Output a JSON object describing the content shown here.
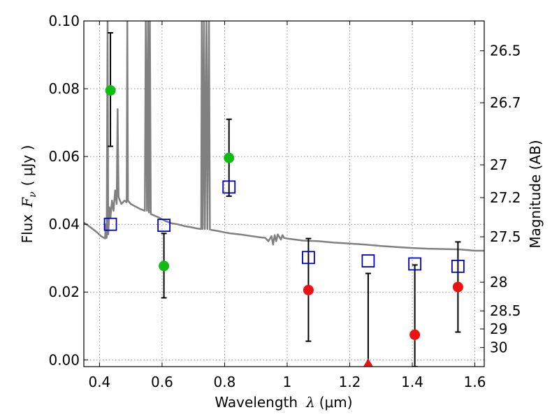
{
  "chart_data": {
    "type": "scatter",
    "xlabel": "Wavelength",
    "xlabel_symbol": "λ",
    "xlabel_unit": "(μm)",
    "ylabel": "Flux",
    "ylabel_symbol": "F",
    "ylabel_subscript": "ν",
    "ylabel_unit": "(  μJy )",
    "y2label": "Magnitude (AB)",
    "xlim": [
      0.35,
      1.63
    ],
    "ylim": [
      -0.002,
      0.1
    ],
    "x_ticks": [
      0.4,
      0.6,
      0.8,
      1.0,
      1.2,
      1.4,
      1.6
    ],
    "x_tick_labels": [
      "0.4",
      "0.6",
      "0.8",
      "1",
      "1.2",
      "1.4",
      "1.6"
    ],
    "y_ticks": [
      0.0,
      0.02,
      0.04,
      0.06,
      0.08,
      0.1
    ],
    "y_tick_labels": [
      "0.00",
      "0.02",
      "0.04",
      "0.06",
      "0.08",
      "0.10"
    ],
    "y2_ticks": [
      26.5,
      26.7,
      27,
      27.2,
      27.5,
      28,
      28.5,
      29,
      30
    ],
    "y2_tick_labels": [
      "26.5",
      "26.7",
      "27",
      "27.2",
      "27.5",
      "28",
      "28.5",
      "29",
      "30"
    ],
    "grid": true,
    "colors": {
      "model": "#808080",
      "green": "#11bb11",
      "red": "#ee1111",
      "blue_box": "#0000cc",
      "errorbar": "#000000"
    },
    "series": [
      {
        "marker": "circle",
        "color": "green",
        "points": [
          {
            "x": 0.435,
            "y": 0.0795,
            "ylo": 0.063,
            "yhi": 0.0965
          },
          {
            "x": 0.606,
            "y": 0.0277,
            "ylo": 0.0183,
            "yhi": 0.0373
          },
          {
            "x": 0.814,
            "y": 0.0596,
            "ylo": 0.0483,
            "yhi": 0.071
          }
        ]
      },
      {
        "marker": "circle",
        "color": "red",
        "points": [
          {
            "x": 1.068,
            "y": 0.0206,
            "ylo": 0.0055,
            "yhi": 0.0358
          },
          {
            "x": 1.408,
            "y": 0.0074,
            "ylo": -0.002,
            "yhi": 0.028
          },
          {
            "x": 1.546,
            "y": 0.0215,
            "ylo": 0.0082,
            "yhi": 0.0348
          }
        ]
      },
      {
        "marker": "triangle",
        "color": "red",
        "points": [
          {
            "x": 1.259,
            "y": -0.0012,
            "ylo": -0.002,
            "yhi": 0.0255
          }
        ]
      },
      {
        "marker": "square-open",
        "color": "blue_box",
        "points": [
          {
            "x": 0.435,
            "y": 0.04
          },
          {
            "x": 0.606,
            "y": 0.0397
          },
          {
            "x": 0.814,
            "y": 0.051
          },
          {
            "x": 1.068,
            "y": 0.0302
          },
          {
            "x": 1.259,
            "y": 0.0292
          },
          {
            "x": 1.408,
            "y": 0.0283
          },
          {
            "x": 1.546,
            "y": 0.0276
          }
        ]
      }
    ],
    "model_spectrum": [
      [
        0.35,
        0.0405
      ],
      [
        0.37,
        0.0392
      ],
      [
        0.39,
        0.0378
      ],
      [
        0.405,
        0.0365
      ],
      [
        0.418,
        0.0358
      ],
      [
        0.42,
        0.04
      ],
      [
        0.423,
        0.036
      ],
      [
        0.426,
        0.1
      ],
      [
        0.428,
        0.037
      ],
      [
        0.432,
        0.045
      ],
      [
        0.435,
        0.042
      ],
      [
        0.44,
        0.047
      ],
      [
        0.445,
        0.044
      ],
      [
        0.45,
        0.05
      ],
      [
        0.455,
        0.046
      ],
      [
        0.458,
        0.074
      ],
      [
        0.461,
        0.048
      ],
      [
        0.47,
        0.046
      ],
      [
        0.48,
        0.047
      ],
      [
        0.487,
        0.0465
      ],
      [
        0.489,
        0.1
      ],
      [
        0.491,
        0.047
      ],
      [
        0.5,
        0.046
      ],
      [
        0.52,
        0.045
      ],
      [
        0.53,
        0.0445
      ],
      [
        0.545,
        0.044
      ],
      [
        0.548,
        0.1
      ],
      [
        0.552,
        0.044
      ],
      [
        0.555,
        0.1
      ],
      [
        0.558,
        0.0435
      ],
      [
        0.561,
        0.1
      ],
      [
        0.564,
        0.043
      ],
      [
        0.57,
        0.0428
      ],
      [
        0.59,
        0.042
      ],
      [
        0.61,
        0.041
      ],
      [
        0.63,
        0.0403
      ],
      [
        0.65,
        0.04
      ],
      [
        0.67,
        0.0395
      ],
      [
        0.69,
        0.0392
      ],
      [
        0.71,
        0.0388
      ],
      [
        0.725,
        0.0386
      ],
      [
        0.727,
        0.1
      ],
      [
        0.73,
        0.0386
      ],
      [
        0.734,
        0.1
      ],
      [
        0.737,
        0.0386
      ],
      [
        0.742,
        0.1
      ],
      [
        0.745,
        0.0386
      ],
      [
        0.75,
        0.1
      ],
      [
        0.753,
        0.0385
      ],
      [
        0.76,
        0.0383
      ],
      [
        0.78,
        0.038
      ],
      [
        0.8,
        0.0376
      ],
      [
        0.82,
        0.0373
      ],
      [
        0.85,
        0.037
      ],
      [
        0.88,
        0.0366
      ],
      [
        0.91,
        0.0362
      ],
      [
        0.93,
        0.036
      ],
      [
        0.94,
        0.035
      ],
      [
        0.95,
        0.0365
      ],
      [
        0.955,
        0.034
      ],
      [
        0.96,
        0.0368
      ],
      [
        0.965,
        0.035
      ],
      [
        0.97,
        0.037
      ],
      [
        0.98,
        0.0355
      ],
      [
        0.985,
        0.0368
      ],
      [
        0.99,
        0.036
      ],
      [
        1.0,
        0.0358
      ],
      [
        1.05,
        0.0352
      ],
      [
        1.1,
        0.035
      ],
      [
        1.15,
        0.0346
      ],
      [
        1.2,
        0.0343
      ],
      [
        1.25,
        0.034
      ],
      [
        1.3,
        0.0336
      ],
      [
        1.35,
        0.0333
      ],
      [
        1.4,
        0.033
      ],
      [
        1.45,
        0.0328
      ],
      [
        1.5,
        0.0327
      ],
      [
        1.55,
        0.0326
      ],
      [
        1.6,
        0.0322
      ],
      [
        1.63,
        0.0322
      ]
    ]
  }
}
